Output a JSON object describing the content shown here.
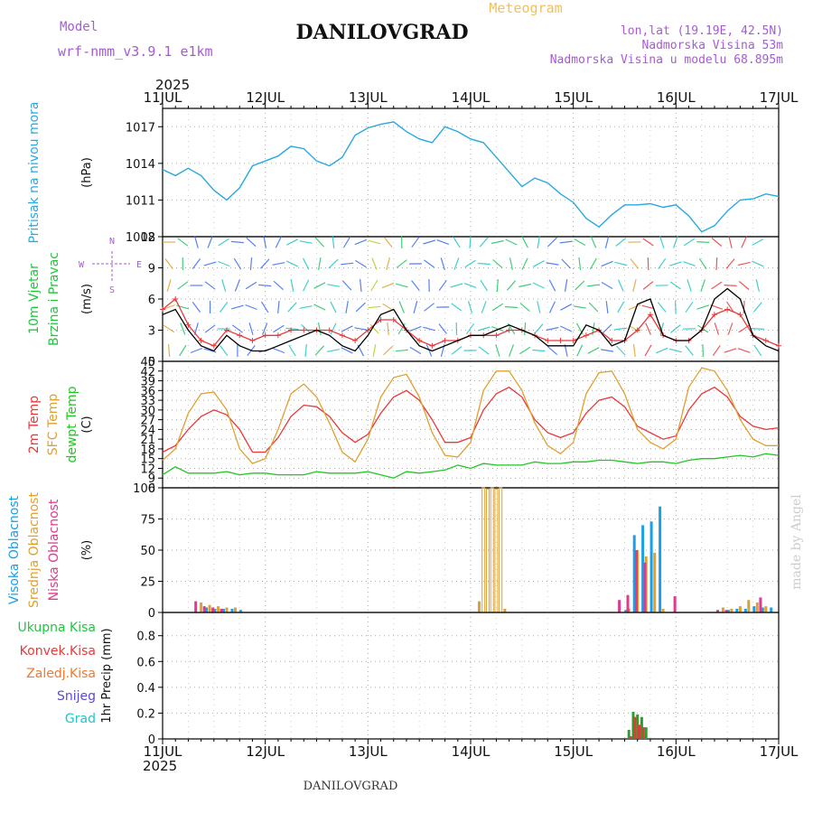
{
  "header": {
    "title": "DANILOVGRAD",
    "subtitle": "Meteogram",
    "model_label": "Model",
    "model_name": "wrf-nmm_v3.9.1 e1km",
    "location": "lon,lat (19.19E, 42.5N)",
    "altitude": "Nadmorska Visina 53m",
    "model_altitude": "Nadmorska Visina u modelu 68.895m",
    "year_top": "2025",
    "year_bottom": "2025",
    "footer": "DANILOVGRAD",
    "credit": "made by Angel"
  },
  "colors": {
    "pressure": "#29a9e0",
    "temp2m": "#e8383a",
    "sfc": "#e0a030",
    "dewpt": "#21c621",
    "wind_speed": "#000000",
    "gust": "#e83a3a",
    "vis_high": "#1aa0e8",
    "cloud_mid": "#e0a030",
    "cloud_low": "#e03a8a"
  },
  "chart_data": [
    {
      "type": "line",
      "panel": "pressure",
      "ylabel_lines": [
        "Pritisak na nivou mora"
      ],
      "unit": "(hPa)",
      "x_ticks": [
        "11JUL",
        "12JUL",
        "13JUL",
        "14JUL",
        "15JUL",
        "16JUL",
        "17JUL"
      ],
      "y_ticks": [
        1008,
        1011,
        1014,
        1017
      ],
      "ylim": [
        1008,
        1018.5
      ],
      "x_hours": [
        0,
        3,
        6,
        9,
        12,
        15,
        18,
        21,
        24,
        27,
        30,
        33,
        36,
        39,
        42,
        45,
        48,
        51,
        54,
        57,
        60,
        63,
        66,
        69,
        72,
        75,
        78,
        81,
        84,
        87,
        90,
        93,
        96,
        99,
        102,
        105,
        108,
        111,
        114,
        117,
        120,
        123,
        126,
        129,
        132,
        135,
        138,
        141,
        144
      ],
      "series": [
        {
          "values": [
            1013.5,
            1013.0,
            1013.6,
            1013.0,
            1011.8,
            1011.0,
            1012.0,
            1013.8,
            1014.2,
            1014.6,
            1015.4,
            1015.2,
            1014.2,
            1013.8,
            1014.5,
            1016.3,
            1016.9,
            1017.2,
            1017.4,
            1016.6,
            1016.0,
            1015.7,
            1017.0,
            1016.6,
            1016.0,
            1015.7,
            1014.5,
            1013.3,
            1012.1,
            1012.8,
            1012.4,
            1011.5,
            1010.8,
            1009.5,
            1008.8,
            1009.8,
            1010.6,
            1010.6,
            1010.7,
            1010.4,
            1010.6,
            1009.7,
            1008.4,
            1008.9,
            1010.1,
            1011.0,
            1011.1,
            1011.5,
            1011.3
          ]
        }
      ]
    },
    {
      "type": "line",
      "panel": "wind",
      "ylabel_lines": [
        "10m Vjetar",
        "Brzina i Pravac"
      ],
      "unit": "(m/s)",
      "compass": [
        "N",
        "W",
        "E",
        "S"
      ],
      "y_ticks": [
        0,
        3,
        6,
        9,
        12
      ],
      "ylim": [
        0,
        12
      ],
      "x_hours": [
        0,
        3,
        6,
        9,
        12,
        15,
        18,
        21,
        24,
        27,
        30,
        33,
        36,
        39,
        42,
        45,
        48,
        51,
        54,
        57,
        60,
        63,
        66,
        69,
        72,
        75,
        78,
        81,
        84,
        87,
        90,
        93,
        96,
        99,
        102,
        105,
        108,
        111,
        114,
        117,
        120,
        123,
        126,
        129,
        132,
        135,
        138,
        141,
        144
      ],
      "series": [
        {
          "name": "speed",
          "values": [
            4.5,
            5.0,
            3.0,
            1.5,
            1.0,
            2.5,
            1.5,
            1.0,
            1.0,
            1.5,
            2.0,
            2.5,
            3.0,
            2.5,
            1.5,
            1.0,
            2.5,
            4.5,
            5.0,
            3.0,
            1.5,
            1.0,
            1.5,
            2.0,
            2.5,
            2.5,
            3.0,
            3.5,
            3.0,
            2.5,
            1.5,
            1.5,
            1.5,
            3.5,
            3.0,
            1.5,
            2.0,
            5.5,
            6.0,
            2.5,
            2.0,
            2.0,
            3.0,
            6.0,
            7.0,
            6.0,
            2.5,
            1.5,
            1.0
          ]
        },
        {
          "name": "gust",
          "values": [
            5.0,
            6.0,
            3.5,
            2.0,
            1.5,
            3.0,
            2.5,
            2.0,
            2.5,
            2.5,
            3.0,
            3.0,
            3.0,
            3.0,
            2.5,
            2.0,
            3.0,
            4.0,
            4.0,
            3.0,
            2.0,
            1.5,
            2.0,
            2.0,
            2.5,
            2.5,
            2.5,
            3.0,
            3.0,
            2.5,
            2.0,
            2.0,
            2.0,
            2.5,
            3.0,
            2.0,
            2.0,
            3.0,
            4.5,
            2.5,
            2.0,
            2.0,
            3.0,
            4.5,
            5.0,
            4.5,
            2.5,
            2.0,
            1.5
          ]
        }
      ]
    },
    {
      "type": "line",
      "panel": "temperature",
      "ylabel_lines": [
        "2m Temp",
        "SFC Temp",
        "dewpt Temp"
      ],
      "unit": "(C)",
      "y_ticks": [
        6,
        9,
        12,
        15,
        18,
        21,
        24,
        27,
        30,
        33,
        36,
        39,
        42,
        45
      ],
      "ylim": [
        6,
        45
      ],
      "x_hours": [
        0,
        3,
        6,
        9,
        12,
        15,
        18,
        21,
        24,
        27,
        30,
        33,
        36,
        39,
        42,
        45,
        48,
        51,
        54,
        57,
        60,
        63,
        66,
        69,
        72,
        75,
        78,
        81,
        84,
        87,
        90,
        93,
        96,
        99,
        102,
        105,
        108,
        111,
        114,
        117,
        120,
        123,
        126,
        129,
        132,
        135,
        138,
        141,
        144
      ],
      "series": [
        {
          "name": "2m",
          "values": [
            17.0,
            19.0,
            24.0,
            28.0,
            30.0,
            28.5,
            24.0,
            17.0,
            17.0,
            21.5,
            28.0,
            31.5,
            31.0,
            28.0,
            23.0,
            20.0,
            22.5,
            29.0,
            34.0,
            36.0,
            33.0,
            27.0,
            20.0,
            20.0,
            21.5,
            30.0,
            35.0,
            37.0,
            34.0,
            27.0,
            23.0,
            21.5,
            23.0,
            29.0,
            33.0,
            34.0,
            31.0,
            25.0,
            23.0,
            21.0,
            22.0,
            30.0,
            35.0,
            37.0,
            34.0,
            28.0,
            25.0,
            24.0,
            24.5
          ]
        },
        {
          "name": "sfc",
          "values": [
            14.5,
            18.0,
            29.0,
            35.0,
            35.5,
            30.0,
            18.0,
            13.5,
            15.0,
            24.0,
            35.0,
            38.0,
            34.0,
            26.0,
            17.0,
            14.0,
            21.0,
            34.0,
            40.0,
            41.0,
            34.0,
            23.0,
            16.0,
            15.5,
            20.0,
            36.0,
            42.0,
            42.0,
            36.0,
            26.0,
            19.0,
            16.5,
            20.0,
            35.0,
            41.5,
            42.0,
            35.0,
            24.0,
            20.0,
            18.0,
            21.0,
            37.0,
            43.0,
            42.0,
            36.0,
            27.0,
            21.0,
            19.0,
            19.0
          ]
        },
        {
          "name": "dewpt",
          "values": [
            10.0,
            12.5,
            10.5,
            10.5,
            10.5,
            11.0,
            10.0,
            10.5,
            10.5,
            10.0,
            10.0,
            10.0,
            11.0,
            10.5,
            10.5,
            10.5,
            11.0,
            10.0,
            9.0,
            11.0,
            10.5,
            11.0,
            11.5,
            13.0,
            12.0,
            13.5,
            13.0,
            13.0,
            13.0,
            14.0,
            13.5,
            13.5,
            14.0,
            14.0,
            14.5,
            14.5,
            14.0,
            13.5,
            14.0,
            14.0,
            13.5,
            14.5,
            15.0,
            15.0,
            15.5,
            16.0,
            15.5,
            16.5,
            16.0
          ]
        }
      ]
    },
    {
      "type": "bar",
      "panel": "clouds",
      "ylabel_lines": [
        "Visoka Oblacnost",
        "Srednja Oblacnost",
        "Niska Oblacnost"
      ],
      "unit": "(%)",
      "y_ticks": [
        0,
        25,
        50,
        75,
        100
      ],
      "ylim": [
        0,
        100
      ],
      "series": [
        {
          "name": "high",
          "x_hours": [
            10,
            12,
            14,
            16,
            18,
            108,
            110,
            112,
            114,
            116,
            132,
            134,
            136,
            138,
            140,
            142
          ],
          "values": [
            4,
            3,
            3,
            3,
            2,
            2,
            62,
            70,
            73,
            85,
            2,
            3,
            3,
            5,
            4,
            4
          ]
        },
        {
          "name": "mid",
          "x_hours": [
            9,
            11,
            13,
            15,
            17,
            74,
            75,
            76,
            77,
            78,
            79,
            80,
            109,
            111,
            113,
            115,
            117,
            131,
            133,
            135,
            137,
            139,
            141
          ],
          "values": [
            8,
            6,
            5,
            4,
            4,
            9,
            100,
            99,
            100,
            99,
            100,
            3,
            3,
            50,
            45,
            48,
            3,
            4,
            3,
            5,
            10,
            8,
            5
          ]
        },
        {
          "name": "low",
          "x_hours": [
            8,
            10,
            12,
            14,
            107,
            109,
            111,
            113,
            120,
            130,
            132,
            140
          ],
          "values": [
            9,
            5,
            4,
            3,
            10,
            14,
            50,
            40,
            13,
            2,
            2,
            12
          ]
        }
      ]
    },
    {
      "type": "bar",
      "panel": "precip",
      "ylabel_lines": [
        "Ukupna Kisa",
        "Konvek.Kisa",
        "Zaledj.Kisa",
        "Snijeg",
        "Grad"
      ],
      "unit": "1hr Precip (mm)",
      "y_ticks": [
        0,
        0.2,
        0.4,
        0.6,
        0.8
      ],
      "ylim": [
        0,
        0.98
      ],
      "series": [
        {
          "name": "Ukupna Kisa",
          "x_hours": [
            109,
            110,
            111,
            112,
            113
          ],
          "values": [
            0.07,
            0.21,
            0.19,
            0.17,
            0.09
          ]
        },
        {
          "name": "Konvek.Kisa",
          "x_hours": [
            109.4,
            110.4,
            111.4,
            112.4
          ],
          "values": [
            0.02,
            0.17,
            0.11,
            0.09
          ]
        }
      ]
    }
  ]
}
